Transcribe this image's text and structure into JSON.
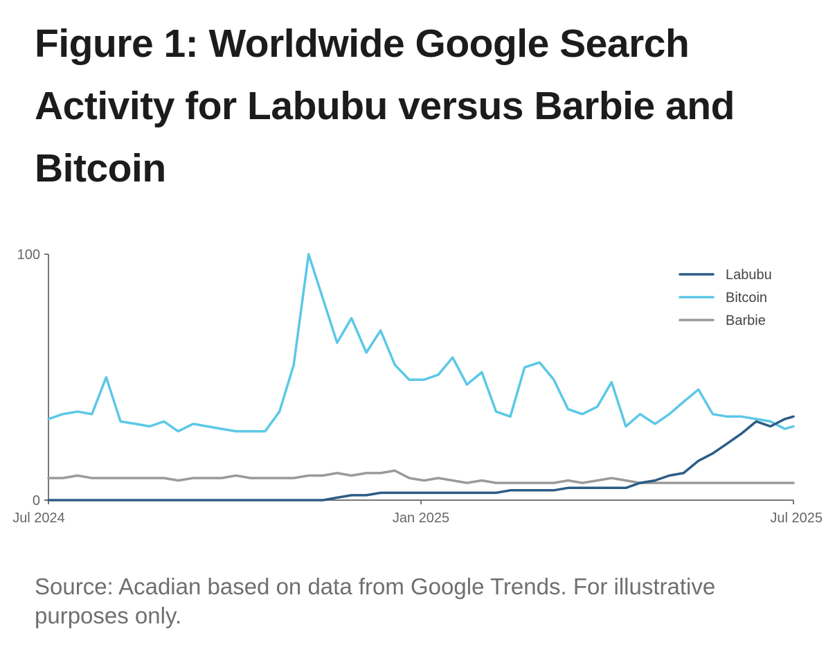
{
  "figure": {
    "title": "Figure 1: Worldwide Google Search Activity for Labubu versus Barbie and Bitcoin",
    "caption": "Source: Acadian based on data from Google Trends. For illustrative purposes only."
  },
  "chart_data": {
    "type": "line",
    "title": "",
    "xlabel": "",
    "ylabel": "",
    "x_ticks": [
      "Jul 2024",
      "Jan 2025",
      "Jul 2025"
    ],
    "y_ticks": [
      0,
      100
    ],
    "ylim": [
      0,
      100
    ],
    "x_range_months": [
      0,
      12
    ],
    "grid": false,
    "legend_position": "top-right",
    "series": [
      {
        "name": "Labubu",
        "color": "#2c5c86",
        "x": [
          0.0,
          0.23,
          0.47,
          0.7,
          0.93,
          1.16,
          1.4,
          1.63,
          1.86,
          2.09,
          2.33,
          2.56,
          2.79,
          3.02,
          3.26,
          3.49,
          3.72,
          3.95,
          4.19,
          4.42,
          4.65,
          4.88,
          5.12,
          5.35,
          5.58,
          5.81,
          6.05,
          6.28,
          6.51,
          6.74,
          6.98,
          7.21,
          7.44,
          7.67,
          7.91,
          8.14,
          8.37,
          8.6,
          8.84,
          9.07,
          9.3,
          9.53,
          9.77,
          10.0,
          10.23,
          10.47,
          10.7,
          10.93,
          11.16,
          11.4,
          11.63,
          11.86,
          12.0
        ],
        "values": [
          0,
          0,
          0,
          0,
          0,
          0,
          0,
          0,
          0,
          0,
          0,
          0,
          0,
          0,
          0,
          0,
          0,
          0,
          0,
          0,
          1,
          2,
          2,
          3,
          3,
          3,
          3,
          3,
          3,
          3,
          3,
          3,
          4,
          4,
          4,
          4,
          5,
          5,
          5,
          5,
          5,
          7,
          8,
          10,
          11,
          16,
          19,
          23,
          27,
          32,
          30,
          33,
          34
        ]
      },
      {
        "name": "Bitcoin",
        "color": "#5bc8e6",
        "x": [
          0.0,
          0.23,
          0.47,
          0.7,
          0.93,
          1.16,
          1.4,
          1.63,
          1.86,
          2.09,
          2.33,
          2.56,
          2.79,
          3.02,
          3.26,
          3.49,
          3.72,
          3.95,
          4.19,
          4.42,
          4.65,
          4.88,
          5.12,
          5.35,
          5.58,
          5.81,
          6.05,
          6.28,
          6.51,
          6.74,
          6.98,
          7.21,
          7.44,
          7.67,
          7.91,
          8.14,
          8.37,
          8.6,
          8.84,
          9.07,
          9.3,
          9.53,
          9.77,
          10.0,
          10.23,
          10.47,
          10.7,
          10.93,
          11.16,
          11.4,
          11.63,
          11.86,
          12.0
        ],
        "values": [
          33,
          35,
          36,
          35,
          50,
          32,
          31,
          30,
          32,
          28,
          31,
          30,
          29,
          28,
          28,
          28,
          36,
          55,
          100,
          82,
          64,
          74,
          60,
          69,
          55,
          49,
          49,
          51,
          58,
          47,
          52,
          36,
          34,
          54,
          56,
          49,
          37,
          35,
          38,
          48,
          30,
          35,
          31,
          35,
          40,
          45,
          35,
          34,
          34,
          33,
          32,
          29,
          30
        ]
      },
      {
        "name": "Barbie",
        "color": "#9a9a9a",
        "x": [
          0.0,
          0.23,
          0.47,
          0.7,
          0.93,
          1.16,
          1.4,
          1.63,
          1.86,
          2.09,
          2.33,
          2.56,
          2.79,
          3.02,
          3.26,
          3.49,
          3.72,
          3.95,
          4.19,
          4.42,
          4.65,
          4.88,
          5.12,
          5.35,
          5.58,
          5.81,
          6.05,
          6.28,
          6.51,
          6.74,
          6.98,
          7.21,
          7.44,
          7.67,
          7.91,
          8.14,
          8.37,
          8.6,
          8.84,
          9.07,
          9.3,
          9.53,
          9.77,
          10.0,
          10.23,
          10.47,
          10.7,
          10.93,
          11.16,
          11.4,
          11.63,
          11.86,
          12.0
        ],
        "values": [
          9,
          9,
          10,
          9,
          9,
          9,
          9,
          9,
          9,
          8,
          9,
          9,
          9,
          10,
          9,
          9,
          9,
          9,
          10,
          10,
          11,
          10,
          11,
          11,
          12,
          9,
          8,
          9,
          8,
          7,
          8,
          7,
          7,
          7,
          7,
          7,
          8,
          7,
          8,
          9,
          8,
          7,
          7,
          7,
          7,
          7,
          7,
          7,
          7,
          7,
          7,
          7,
          7
        ]
      }
    ]
  }
}
